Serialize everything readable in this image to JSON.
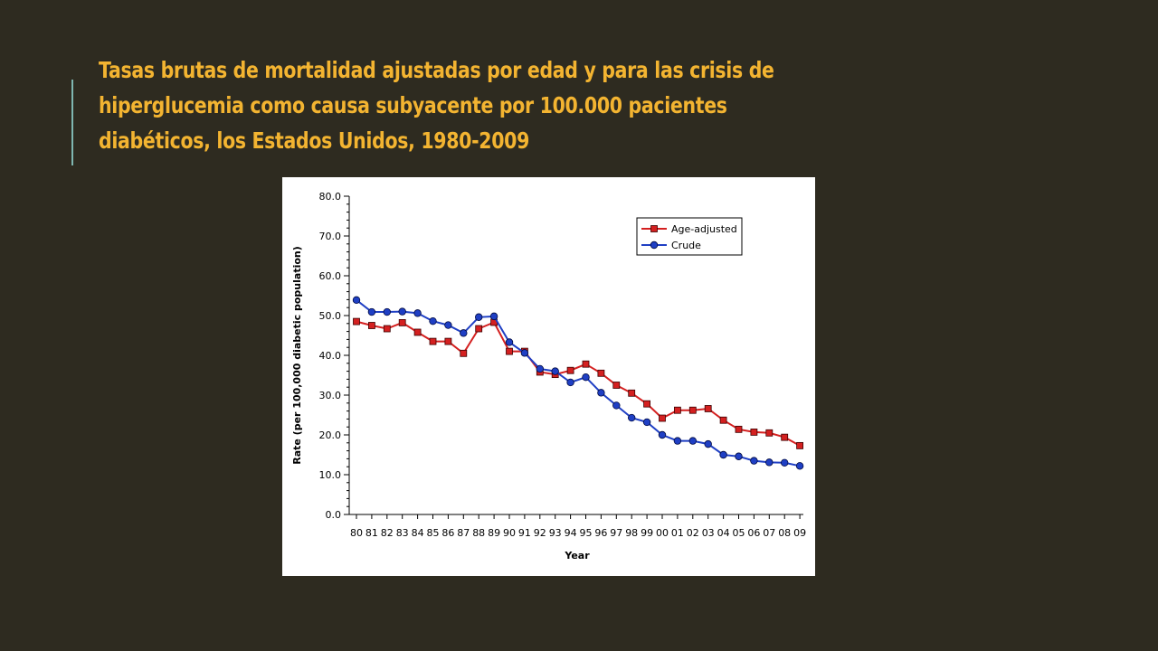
{
  "slide": {
    "title": "Tasas brutas de mortalidad ajustadas por edad y para las crisis de hiperglucemia como causa subyacente por 100.000 pacientes diabéticos, los Estados Unidos, 1980-2009"
  },
  "chart_data": {
    "type": "line",
    "title": "",
    "xlabel": "Year",
    "ylabel": "Rate (per 100,000 diabetic population)",
    "categories": [
      "80",
      "81",
      "82",
      "83",
      "84",
      "85",
      "86",
      "87",
      "88",
      "89",
      "90",
      "91",
      "92",
      "93",
      "94",
      "95",
      "96",
      "97",
      "98",
      "99",
      "00",
      "01",
      "02",
      "03",
      "04",
      "05",
      "06",
      "07",
      "08",
      "09"
    ],
    "y_ticks": [
      "0.0",
      "10.0",
      "20.0",
      "30.0",
      "40.0",
      "50.0",
      "60.0",
      "70.0",
      "80.0"
    ],
    "ylim": [
      0,
      80
    ],
    "legend_position": "top-right",
    "series": [
      {
        "name": "Age-adjusted",
        "color": "#d42020",
        "marker": "square",
        "values": [
          48.5,
          47.5,
          46.7,
          48.2,
          45.8,
          43.5,
          43.5,
          40.5,
          46.7,
          48.3,
          41.0,
          41.0,
          35.8,
          35.2,
          36.2,
          37.8,
          35.5,
          32.5,
          30.5,
          27.8,
          24.2,
          26.2,
          26.2,
          26.6,
          23.7,
          21.4,
          20.7,
          20.5,
          19.4,
          17.3
        ]
      },
      {
        "name": "Crude",
        "color": "#1f3fc4",
        "marker": "circle",
        "values": [
          53.9,
          50.9,
          50.9,
          51.0,
          50.6,
          48.6,
          47.6,
          45.6,
          49.6,
          49.8,
          43.3,
          40.6,
          36.6,
          36.0,
          33.2,
          34.5,
          30.6,
          27.4,
          24.3,
          23.2,
          20.0,
          18.5,
          18.5,
          17.7,
          15.0,
          14.6,
          13.5,
          13.1,
          13.0,
          12.2
        ]
      }
    ]
  }
}
